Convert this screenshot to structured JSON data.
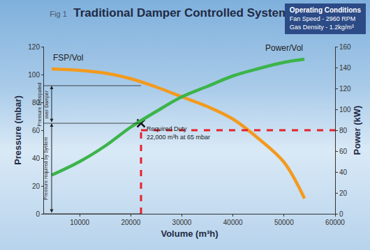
{
  "chart_data": {
    "type": "line",
    "figure_label": "Fig 1",
    "title": "Traditional Damper Controlled System",
    "x_label": "Volume (m³h)",
    "y_label": "Pressure (mbar)",
    "y2_label": "Power (kW)",
    "xlim": [
      3000,
      60000
    ],
    "xticks": [
      10000,
      20000,
      30000,
      40000,
      50000,
      60000
    ],
    "ylim": [
      0,
      120
    ],
    "yticks": [
      0,
      20,
      40,
      60,
      80,
      100,
      120
    ],
    "y2lim": [
      0,
      160
    ],
    "y2ticks": [
      0,
      20,
      40,
      60,
      80,
      100,
      120,
      140,
      160
    ],
    "grid": false,
    "series": [
      {
        "name": "FSP/Vol",
        "color": "#f39a1e",
        "x": [
          4500,
          10000,
          15000,
          20000,
          25000,
          30000,
          35000,
          40000,
          45000,
          50000,
          54000
        ],
        "values": [
          104,
          103,
          101,
          97,
          91,
          84,
          77,
          68,
          54,
          37,
          11
        ]
      },
      {
        "name": "Power/Vol",
        "color": "#3cb44a",
        "axis": "y2",
        "x": [
          4500,
          10000,
          15000,
          20000,
          25000,
          30000,
          35000,
          40000,
          45000,
          50000,
          54000
        ],
        "values": [
          37,
          50,
          65,
          83,
          98,
          112,
          122,
          132,
          139,
          145,
          148
        ]
      },
      {
        "type": "line",
        "line_style": "dashed",
        "color": "#e8202a",
        "x": [
          22000,
          22000
        ],
        "values": [
          0,
          60
        ]
      },
      {
        "type": "line",
        "line_style": "dashed",
        "color": "#e8202a",
        "x": [
          22000,
          60000
        ],
        "values": [
          60,
          60
        ]
      },
      {
        "type": "scatter",
        "marker": "x",
        "color": "#1a1a1a",
        "x": [
          22000
        ],
        "values": [
          65
        ]
      }
    ],
    "annotations": [
      {
        "text": "Required Duty",
        "x": 22800,
        "y": 61
      },
      {
        "text": "22,000 m³h at 65 mbar",
        "x": 22800,
        "y": 55
      }
    ],
    "brackets": [
      {
        "lines": [
          "Pressure Dissipated",
          "over Damper"
        ],
        "from": 65,
        "to": 92,
        "x": 4500
      },
      {
        "lines": [
          "Pressure required by System"
        ],
        "from": 0,
        "to": 65,
        "x": 4500
      }
    ],
    "operating_conditions": {
      "title": "Operating Conditions",
      "lines": [
        "Fan Speed - 2960 RPM",
        "Gas Density - 1.2kg/m³"
      ]
    }
  }
}
